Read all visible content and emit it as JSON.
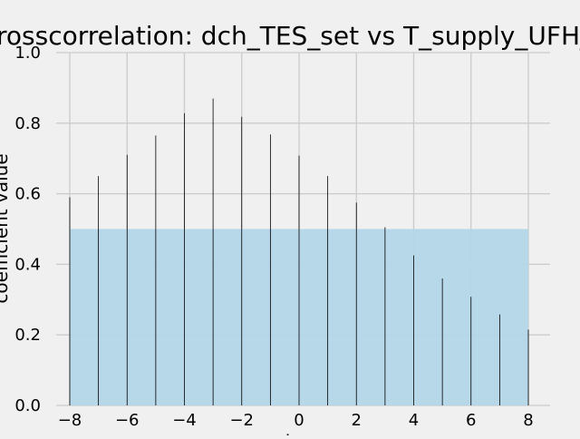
{
  "chart_data": {
    "type": "bar",
    "title": "Crosscorrelation: dch_TES_set vs T_supply_UFH_in",
    "xlabel": "lag",
    "ylabel": "coefficient value",
    "x": [
      -8,
      -7,
      -6,
      -5,
      -4,
      -3,
      -2,
      -1,
      0,
      1,
      2,
      3,
      4,
      5,
      6,
      7,
      8
    ],
    "values": [
      0.59,
      0.65,
      0.71,
      0.765,
      0.828,
      0.87,
      0.818,
      0.768,
      0.708,
      0.65,
      0.575,
      0.505,
      0.425,
      0.36,
      0.308,
      0.258,
      0.215
    ],
    "xlim": [
      -8,
      8
    ],
    "ylim": [
      0.0,
      1.0
    ],
    "xticks": [
      -8,
      -6,
      -4,
      -2,
      0,
      2,
      4,
      6,
      8
    ],
    "xtick_labels": [
      "−8",
      "−6",
      "−4",
      "−2",
      "0",
      "2",
      "4",
      "6",
      "8"
    ],
    "yticks": [
      0.0,
      0.2,
      0.4,
      0.6,
      0.8,
      1.0
    ],
    "ytick_labels": [
      "0.0",
      "0.2",
      "0.4",
      "0.6",
      "0.8",
      "1.0"
    ],
    "threshold_band": {
      "from": 0.0,
      "to": 0.5,
      "color": "#b3d6e8"
    },
    "bar_color": "#000000",
    "grid": true,
    "style": "fivethirtyeight"
  }
}
